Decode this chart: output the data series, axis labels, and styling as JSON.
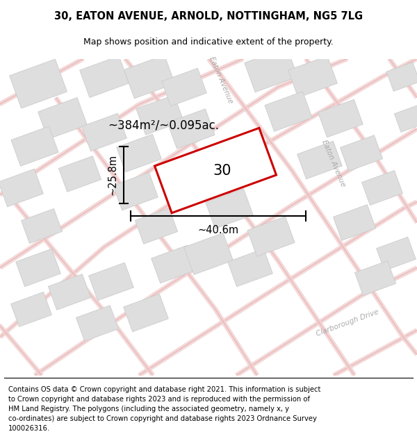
{
  "title": "30, EATON AVENUE, ARNOLD, NOTTINGHAM, NG5 7LG",
  "subtitle": "Map shows position and indicative extent of the property.",
  "area_label": "~384m²/~0.095ac.",
  "width_label": "~40.6m",
  "height_label": "~25.8m",
  "property_number": "30",
  "map_bg": "#f7f4f4",
  "building_fill": "#dedede",
  "building_edge": "#cccccc",
  "road_color": "#e8a8a8",
  "road_light": "#f2d4d4",
  "property_fill": "#ffffff",
  "property_edge": "#cc0000",
  "title_fontsize": 10.5,
  "subtitle_fontsize": 9,
  "footer_fontsize": 7.2,
  "footer_lines": [
    "Contains OS data © Crown copyright and database right 2021. This information is subject",
    "to Crown copyright and database rights 2023 and is reproduced with the permission of",
    "HM Land Registry. The polygons (including the associated geometry, namely x, y",
    "co-ordinates) are subject to Crown copyright and database rights 2023 Ordnance Survey",
    "100026316."
  ]
}
